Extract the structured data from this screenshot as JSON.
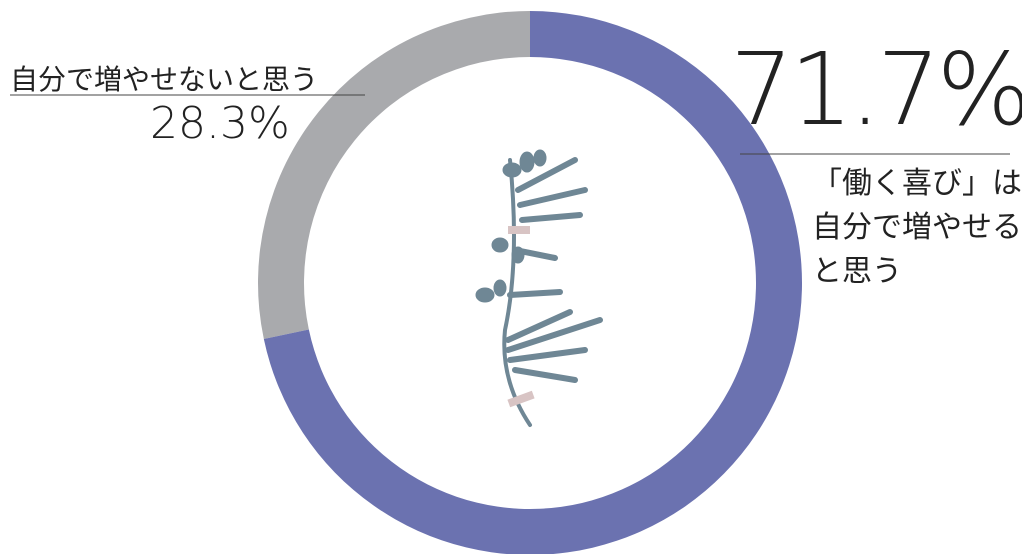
{
  "chart_data": {
    "type": "donut",
    "categories": [
      "「働く喜び」は自分で増やせると思う",
      "自分で増やせないと思う"
    ],
    "values": [
      71.7,
      28.3
    ],
    "value_labels": [
      "71.7%",
      "28.3%"
    ],
    "colors": [
      "#6b72b0",
      "#a9aaad"
    ]
  }
}
